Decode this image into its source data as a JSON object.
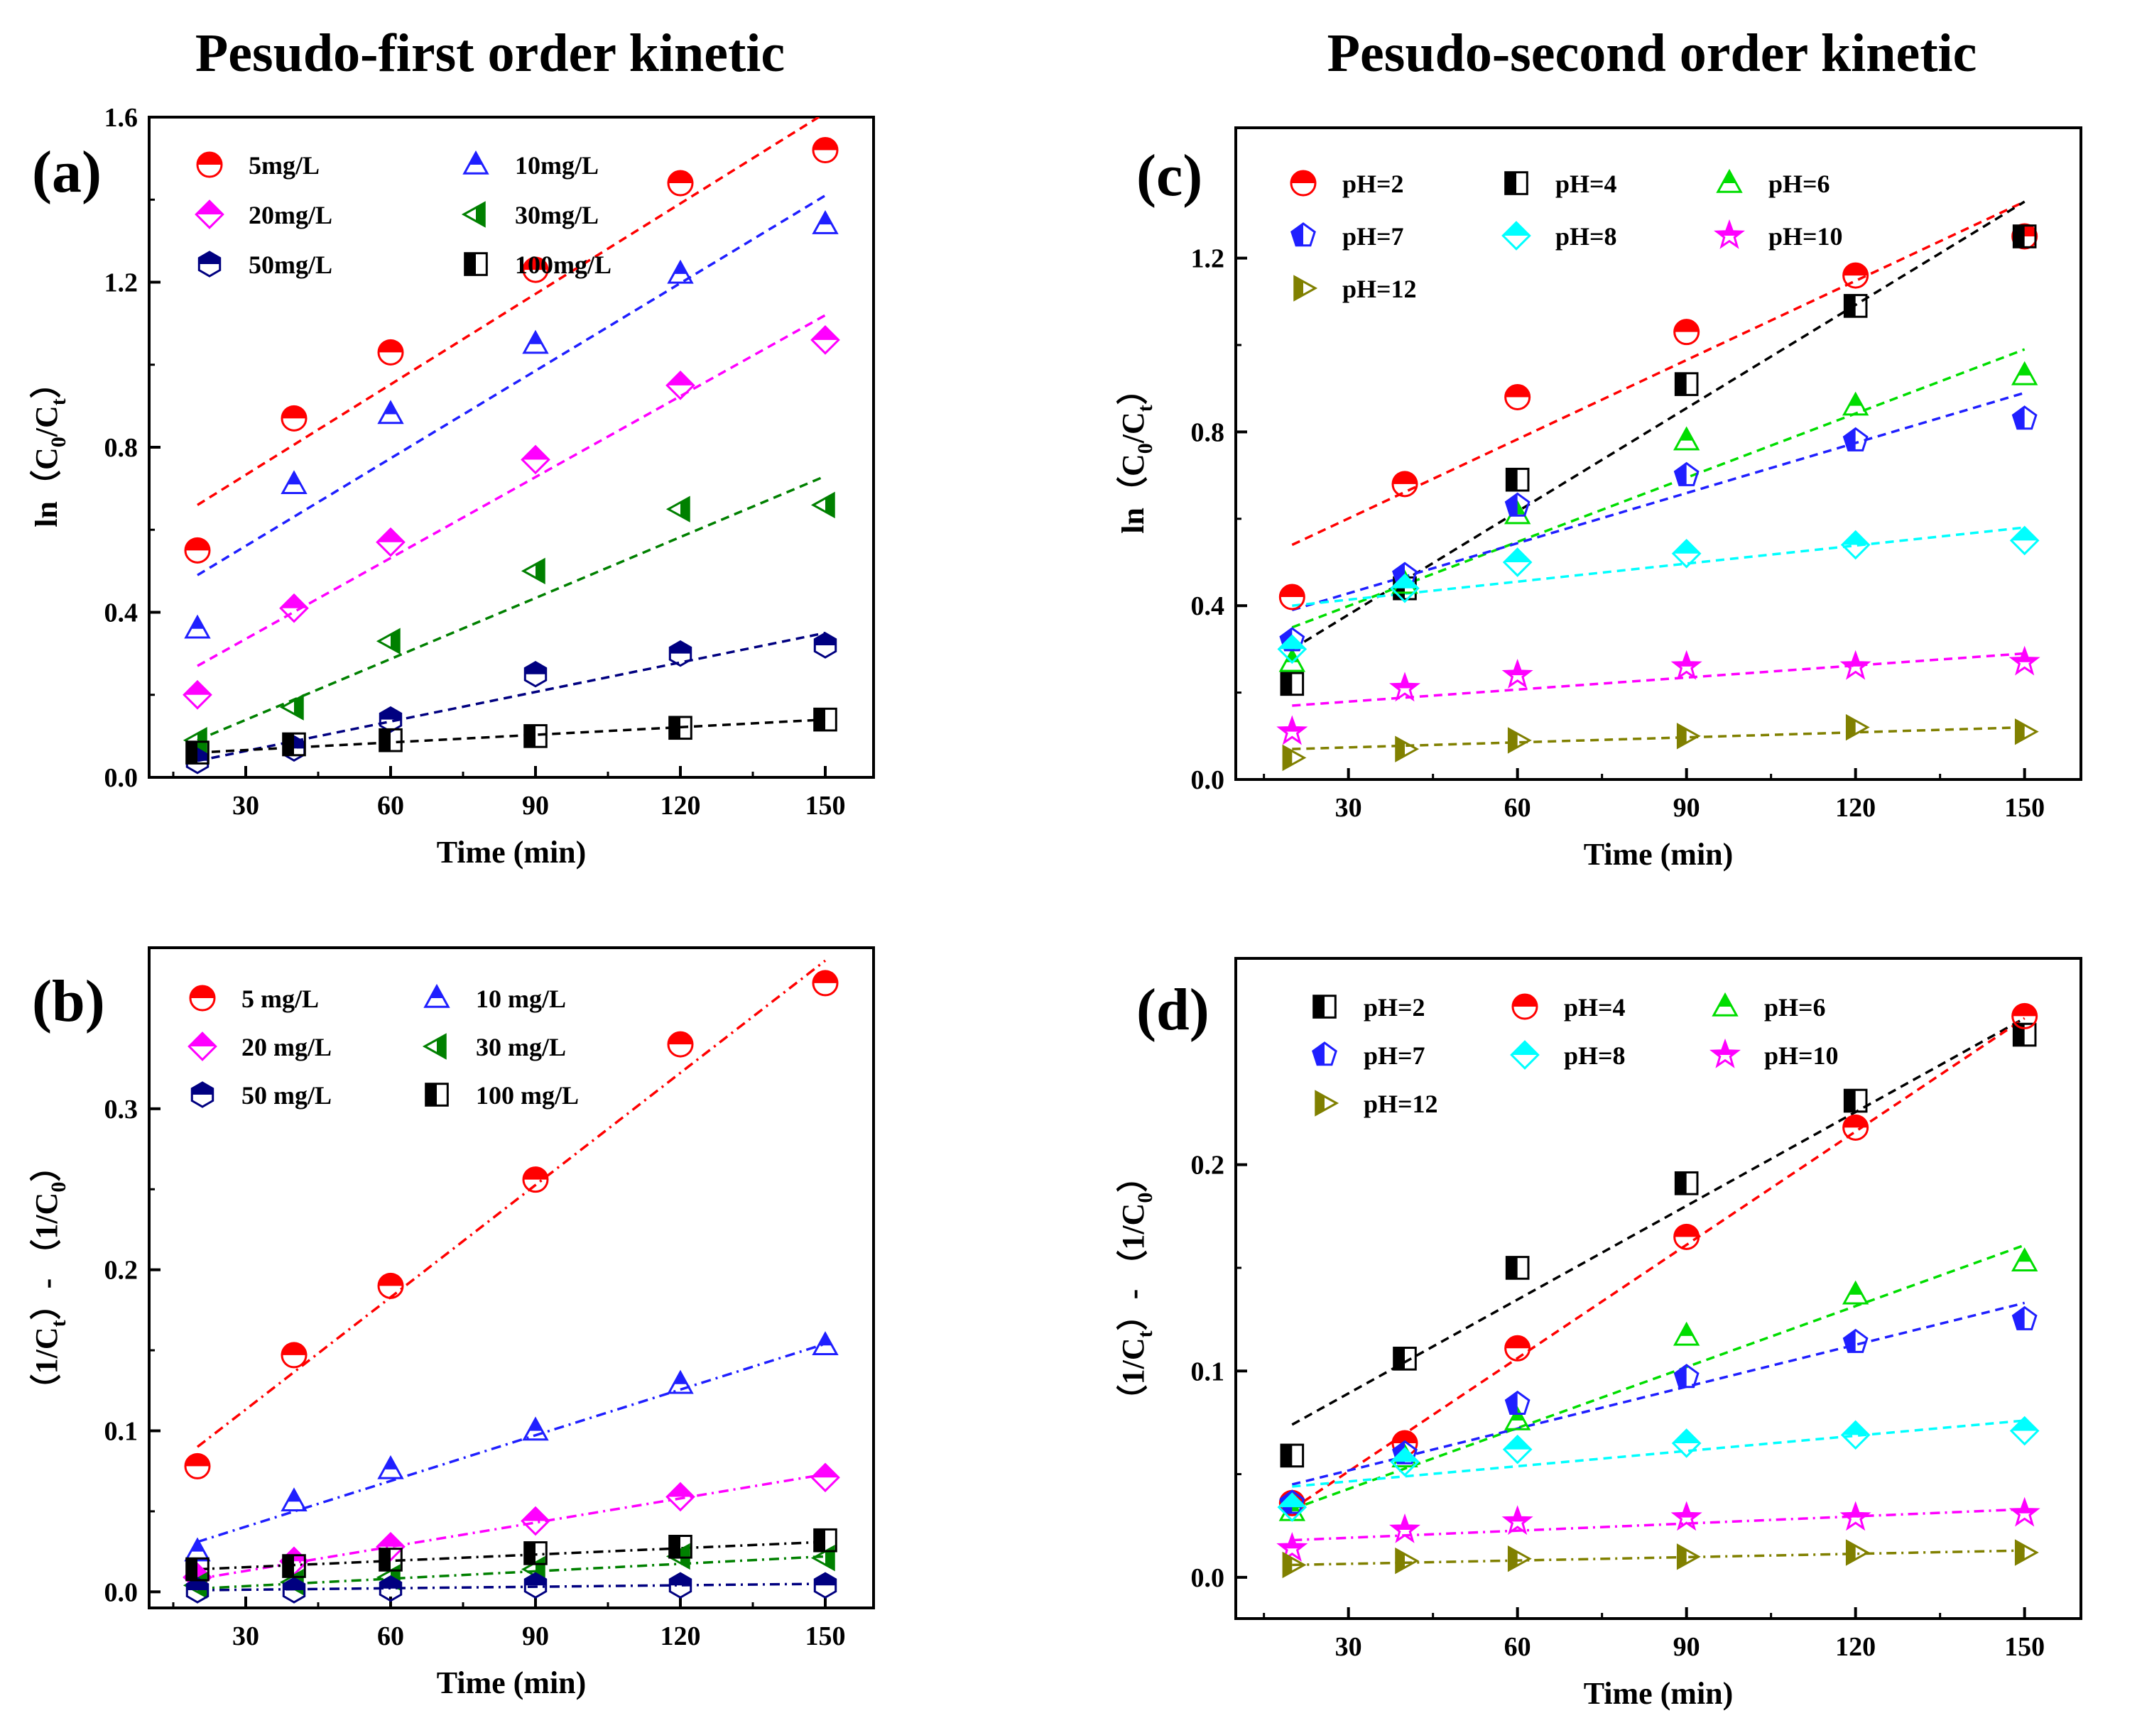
{
  "figure": {
    "titles": {
      "left": "Pesudo-first order kinetic",
      "right": "Pesudo-second order kinetic"
    }
  },
  "chart_data": [
    {
      "panel": "(a)",
      "type": "scatter",
      "xlabel": "Time (min)",
      "ylabel_prefix": "ln",
      "ylabel_parts": [
        "（C",
        "0",
        "/C",
        "t",
        "）"
      ],
      "xlim": [
        10,
        160
      ],
      "ylim": [
        0,
        1.6
      ],
      "xticks": [
        30,
        60,
        90,
        120,
        150
      ],
      "yticks": [
        0.0,
        0.4,
        0.8,
        1.2,
        1.6
      ],
      "ytick_labels": [
        "0.0",
        "0.4",
        "0.8",
        "1.2",
        "1.6"
      ],
      "fit_style": "dashed",
      "legend_cols": 2,
      "x": [
        20,
        40,
        60,
        90,
        120,
        150
      ],
      "series": [
        {
          "name": "5mg/L",
          "color": "#ff0000",
          "marker": "circle",
          "values": [
            0.55,
            0.87,
            1.03,
            1.23,
            1.44,
            1.52
          ],
          "fit": [
            0.66,
            1.61
          ]
        },
        {
          "name": "10mg/L",
          "color": "#1f1fff",
          "marker": "triangle",
          "values": [
            0.36,
            0.71,
            0.88,
            1.05,
            1.22,
            1.34
          ],
          "fit": [
            0.49,
            1.41
          ]
        },
        {
          "name": "20mg/L",
          "color": "#ff00ff",
          "marker": "diamond",
          "values": [
            0.2,
            0.41,
            0.57,
            0.77,
            0.95,
            1.06
          ],
          "fit": [
            0.27,
            1.12
          ]
        },
        {
          "name": "30mg/L",
          "color": "#008000",
          "marker": "left-triangle",
          "values": [
            0.09,
            0.17,
            0.33,
            0.5,
            0.65,
            0.66
          ],
          "fit": [
            0.09,
            0.73
          ]
        },
        {
          "name": "50mg/L",
          "color": "#000080",
          "marker": "hexagon",
          "values": [
            0.04,
            0.07,
            0.14,
            0.25,
            0.3,
            0.32
          ],
          "fit": [
            0.04,
            0.35
          ]
        },
        {
          "name": "100mg/L",
          "color": "#000000",
          "marker": "square",
          "values": [
            0.06,
            0.08,
            0.09,
            0.1,
            0.12,
            0.14
          ],
          "fit": [
            0.06,
            0.14
          ]
        }
      ]
    },
    {
      "panel": "(b)",
      "type": "scatter",
      "xlabel": "Time (min)",
      "ylabel_prefix": "",
      "ylabel_parts": [
        "（1/C",
        "t",
        "）- （1/C",
        "0",
        "）"
      ],
      "xlim": [
        10,
        160
      ],
      "ylim": [
        -0.01,
        0.4
      ],
      "xticks": [
        30,
        60,
        90,
        120,
        150
      ],
      "yticks": [
        0.0,
        0.1,
        0.2,
        0.3
      ],
      "ytick_labels": [
        "0.0",
        "0.1",
        "0.2",
        "0.3"
      ],
      "fit_style": "dashdot",
      "legend_cols": 2,
      "x": [
        20,
        40,
        60,
        90,
        120,
        150
      ],
      "series": [
        {
          "name": "5 mg/L",
          "color": "#ff0000",
          "marker": "circle",
          "values": [
            0.078,
            0.147,
            0.19,
            0.256,
            0.34,
            0.378
          ],
          "fit": [
            0.09,
            0.392
          ]
        },
        {
          "name": "10 mg/L",
          "color": "#1f1fff",
          "marker": "triangle",
          "values": [
            0.025,
            0.056,
            0.076,
            0.1,
            0.129,
            0.153
          ],
          "fit": [
            0.031,
            0.154
          ]
        },
        {
          "name": "20 mg/L",
          "color": "#ff00ff",
          "marker": "diamond",
          "values": [
            0.009,
            0.019,
            0.028,
            0.044,
            0.059,
            0.071
          ],
          "fit": [
            0.008,
            0.073
          ]
        },
        {
          "name": "30 mg/L",
          "color": "#008000",
          "marker": "left-triangle",
          "values": [
            0.004,
            0.006,
            0.009,
            0.014,
            0.022,
            0.021
          ],
          "fit": [
            0.002,
            0.022
          ]
        },
        {
          "name": "50 mg/L",
          "color": "#000080",
          "marker": "hexagon",
          "values": [
            0.001,
            0.001,
            0.002,
            0.004,
            0.004,
            0.004
          ],
          "fit": [
            0.001,
            0.005
          ]
        },
        {
          "name": "100 mg/L",
          "color": "#000000",
          "marker": "square",
          "values": [
            0.014,
            0.016,
            0.02,
            0.024,
            0.028,
            0.032
          ],
          "fit": [
            0.014,
            0.031
          ]
        }
      ]
    },
    {
      "panel": "(c)",
      "type": "scatter",
      "xlabel": "Time (min)",
      "ylabel_prefix": "ln",
      "ylabel_parts": [
        "（C",
        "0",
        "/C",
        "t",
        "）"
      ],
      "xlim": [
        10,
        160
      ],
      "ylim": [
        0,
        1.5
      ],
      "xticks": [
        30,
        60,
        90,
        120,
        150
      ],
      "yticks": [
        0.0,
        0.4,
        0.8,
        1.2
      ],
      "ytick_labels": [
        "0.0",
        "0.4",
        "0.8",
        "1.2"
      ],
      "fit_style": "dashed",
      "legend_cols": 3,
      "x": [
        20,
        40,
        60,
        90,
        120,
        150
      ],
      "series": [
        {
          "name": "pH=2",
          "color": "#ff0000",
          "marker": "circle",
          "values": [
            0.42,
            0.68,
            0.88,
            1.03,
            1.16,
            1.25
          ],
          "fit": [
            0.54,
            1.33
          ]
        },
        {
          "name": "pH=4",
          "color": "#000000",
          "marker": "square",
          "values": [
            0.22,
            0.44,
            0.69,
            0.91,
            1.09,
            1.25
          ],
          "fit": [
            0.3,
            1.33
          ]
        },
        {
          "name": "pH=6",
          "color": "#00dd00",
          "marker": "triangle",
          "values": [
            0.27,
            0.45,
            0.61,
            0.78,
            0.86,
            0.93
          ],
          "fit": [
            0.35,
            0.99
          ]
        },
        {
          "name": "pH=7",
          "color": "#1f1fff",
          "marker": "pentagon",
          "values": [
            0.32,
            0.47,
            0.63,
            0.7,
            0.78,
            0.83
          ],
          "fit": [
            0.39,
            0.89
          ]
        },
        {
          "name": "pH=8",
          "color": "#00ffff",
          "marker": "diamond",
          "values": [
            0.3,
            0.44,
            0.5,
            0.52,
            0.54,
            0.55
          ],
          "fit": [
            0.4,
            0.58
          ]
        },
        {
          "name": "pH=10",
          "color": "#ff00ff",
          "marker": "star",
          "values": [
            0.11,
            0.21,
            0.24,
            0.26,
            0.26,
            0.27
          ],
          "fit": [
            0.17,
            0.29
          ]
        },
        {
          "name": "pH=12",
          "color": "#808000",
          "marker": "right-triangle",
          "values": [
            0.05,
            0.07,
            0.09,
            0.1,
            0.12,
            0.11
          ],
          "fit": [
            0.07,
            0.12
          ]
        }
      ]
    },
    {
      "panel": "(d)",
      "type": "scatter",
      "xlabel": "Time (min)",
      "ylabel_prefix": "",
      "ylabel_parts": [
        "（1/C",
        "t",
        "）- （1/C",
        "0",
        "）"
      ],
      "xlim": [
        10,
        160
      ],
      "ylim": [
        -0.02,
        0.3
      ],
      "xticks": [
        30,
        60,
        90,
        120,
        150
      ],
      "yticks": [
        0.0,
        0.1,
        0.2
      ],
      "ytick_labels": [
        "0.0",
        "0.1",
        "0.2"
      ],
      "fit_style": "mixed",
      "legend_cols": 3,
      "x": [
        20,
        40,
        60,
        90,
        120,
        150
      ],
      "series": [
        {
          "name": "pH=2",
          "color": "#000000",
          "marker": "square",
          "values": [
            0.059,
            0.106,
            0.15,
            0.191,
            0.231,
            0.263
          ],
          "fit": [
            0.074,
            0.271
          ],
          "dash": "dashed"
        },
        {
          "name": "pH=4",
          "color": "#ff0000",
          "marker": "circle",
          "values": [
            0.036,
            0.065,
            0.111,
            0.165,
            0.218,
            0.272
          ],
          "fit": [
            0.033,
            0.271
          ],
          "dash": "dashed"
        },
        {
          "name": "pH=6",
          "color": "#00dd00",
          "marker": "triangle",
          "values": [
            0.032,
            0.058,
            0.076,
            0.117,
            0.137,
            0.153
          ],
          "fit": [
            0.033,
            0.161
          ],
          "dash": "dashed"
        },
        {
          "name": "pH=7",
          "color": "#1f1fff",
          "marker": "pentagon",
          "values": [
            0.036,
            0.06,
            0.084,
            0.097,
            0.114,
            0.125
          ],
          "fit": [
            0.045,
            0.133
          ],
          "dash": "dashed"
        },
        {
          "name": "pH=8",
          "color": "#00ffff",
          "marker": "diamond",
          "values": [
            0.034,
            0.056,
            0.062,
            0.065,
            0.069,
            0.071
          ],
          "fit": [
            0.044,
            0.076
          ],
          "dash": "dashed"
        },
        {
          "name": "pH=10",
          "color": "#ff00ff",
          "marker": "star",
          "values": [
            0.014,
            0.023,
            0.027,
            0.029,
            0.029,
            0.031
          ],
          "fit": [
            0.018,
            0.033
          ],
          "dash": "dashdot"
        },
        {
          "name": "pH=12",
          "color": "#808000",
          "marker": "right-triangle",
          "values": [
            0.006,
            0.008,
            0.009,
            0.01,
            0.012,
            0.012
          ],
          "fit": [
            0.006,
            0.013
          ],
          "dash": "dashdot"
        }
      ]
    }
  ]
}
